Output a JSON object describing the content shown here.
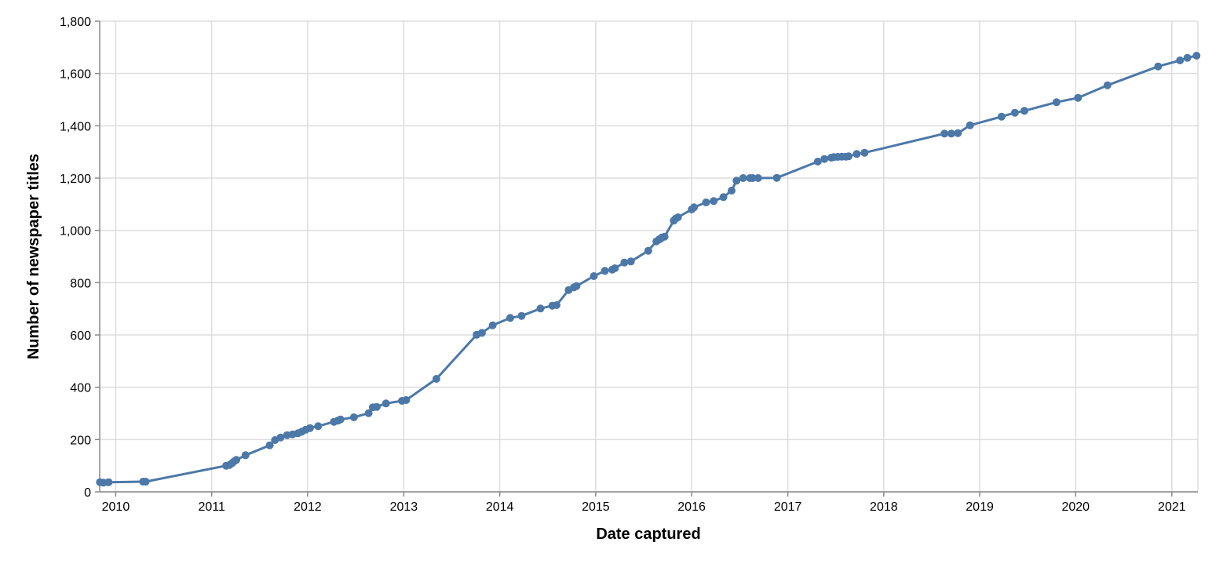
{
  "chart_data": {
    "type": "line",
    "title": "",
    "xlabel": "Date captured",
    "ylabel": "Number of newspaper titles",
    "x_type": "date",
    "xlim": [
      "2009-11-01",
      "2021-04-10"
    ],
    "ylim": [
      0,
      1800
    ],
    "x_tick_labels": [
      "2010",
      "2011",
      "2012",
      "2013",
      "2014",
      "2015",
      "2016",
      "2017",
      "2018",
      "2019",
      "2020",
      "2021"
    ],
    "y_tick_labels": [
      "0",
      "200",
      "400",
      "600",
      "800",
      "1,000",
      "1,200",
      "1,400",
      "1,600",
      "1,800"
    ],
    "y_ticks": [
      0,
      200,
      400,
      600,
      800,
      1000,
      1200,
      1400,
      1600,
      1800
    ],
    "grid": true,
    "line_color": "#4c78a8",
    "series": [
      {
        "x": [
          "2009-11-02",
          "2009-11-15",
          "2009-12-05",
          "2010-04-15",
          "2010-04-25",
          "2011-02-25",
          "2011-03-10",
          "2011-03-20",
          "2011-03-28",
          "2011-04-05",
          "2011-05-10",
          "2011-08-10",
          "2011-08-30",
          "2011-09-20",
          "2011-10-15",
          "2011-11-05",
          "2011-11-25",
          "2011-12-10",
          "2011-12-25",
          "2012-01-10",
          "2012-02-10",
          "2012-04-10",
          "2012-04-25",
          "2012-05-05",
          "2012-06-25",
          "2012-08-20",
          "2012-09-05",
          "2012-09-20",
          "2012-10-25",
          "2012-12-25",
          "2013-01-10",
          "2013-05-05",
          "2013-10-05",
          "2013-10-25",
          "2013-12-05",
          "2014-02-10",
          "2014-03-25",
          "2014-06-05",
          "2014-07-20",
          "2014-08-05",
          "2014-09-20",
          "2014-10-10",
          "2014-10-20",
          "2014-12-25",
          "2015-02-05",
          "2015-03-05",
          "2015-03-15",
          "2015-04-20",
          "2015-05-15",
          "2015-07-20",
          "2015-08-20",
          "2015-08-30",
          "2015-09-05",
          "2015-09-10",
          "2015-09-20",
          "2015-10-25",
          "2015-11-01",
          "2015-11-10",
          "2016-01-01",
          "2016-01-10",
          "2016-02-25",
          "2016-03-25",
          "2016-05-01",
          "2016-06-01",
          "2016-06-20",
          "2016-07-15",
          "2016-08-10",
          "2016-08-20",
          "2016-09-10",
          "2016-11-20",
          "2017-04-25",
          "2017-05-20",
          "2017-06-15",
          "2017-06-25",
          "2017-07-10",
          "2017-07-25",
          "2017-08-10",
          "2017-08-20",
          "2017-09-20",
          "2017-10-20",
          "2018-08-20",
          "2018-09-15",
          "2018-10-10",
          "2018-11-25",
          "2019-03-25",
          "2019-05-15",
          "2019-06-20",
          "2019-10-20",
          "2020-01-10",
          "2020-05-01",
          "2020-11-10",
          "2021-02-01",
          "2021-03-01",
          "2021-04-05"
        ],
        "y": [
          37,
          35,
          37,
          39,
          39,
          100,
          103,
          110,
          117,
          122,
          140,
          178,
          198,
          208,
          217,
          220,
          224,
          230,
          238,
          244,
          251,
          268,
          272,
          277,
          285,
          301,
          323,
          325,
          338,
          348,
          351,
          432,
          601,
          608,
          637,
          665,
          673,
          701,
          712,
          714,
          772,
          782,
          787,
          825,
          845,
          850,
          855,
          877,
          881,
          922,
          958,
          965,
          968,
          973,
          976,
          1037,
          1045,
          1050,
          1080,
          1088,
          1107,
          1112,
          1127,
          1152,
          1190,
          1200,
          1200,
          1200,
          1200,
          1201,
          1263,
          1273,
          1278,
          1280,
          1281,
          1282,
          1282,
          1283,
          1292,
          1297,
          1370,
          1370,
          1372,
          1402,
          1435,
          1450,
          1457,
          1490,
          1507,
          1555,
          1627,
          1650,
          1660,
          1668
        ]
      }
    ]
  }
}
